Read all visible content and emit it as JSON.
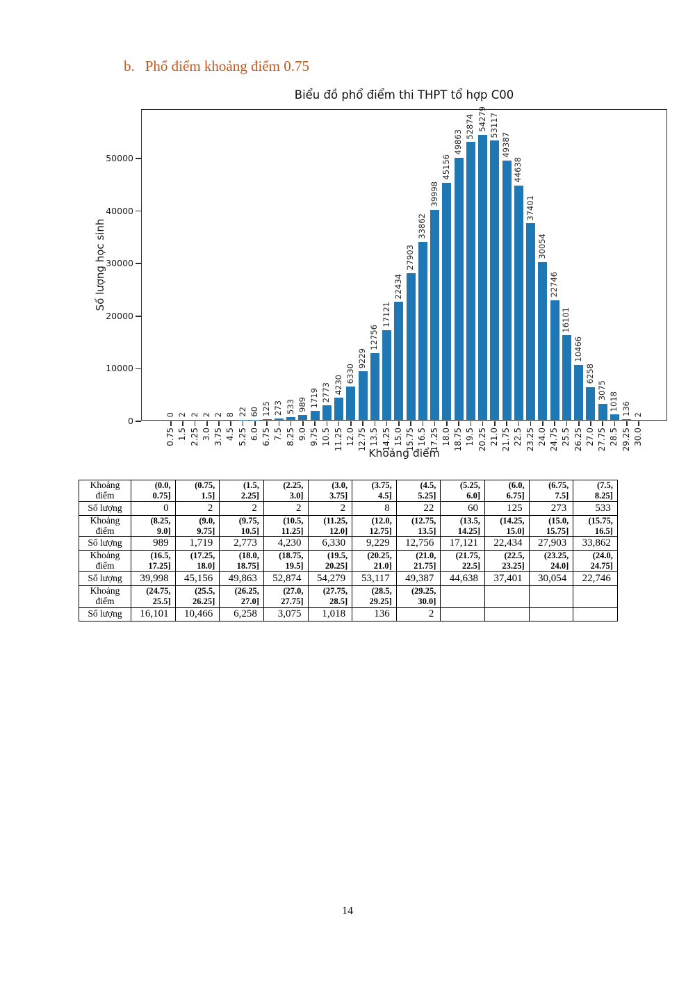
{
  "page": {
    "number": "14"
  },
  "heading": {
    "index": "b.",
    "text": "Phổ điểm khoảng điểm 0.75",
    "color": "#c05a21"
  },
  "chart_data": {
    "type": "bar",
    "title": "Biểu đồ phổ điểm thi THPT tổ hợp C00",
    "xlabel": "Khoảng điểm",
    "ylabel": "Số lượng học sinh",
    "bar_color": "#1f77b4",
    "grid": false,
    "legend": null,
    "ylim": [
      0,
      59259
    ],
    "yticks": [
      0,
      10000,
      20000,
      30000,
      40000,
      50000
    ],
    "categories": [
      "0.75",
      "1.5",
      "2.25",
      "3.0",
      "3.75",
      "4.5",
      "5.25",
      "6.0",
      "6.75",
      "7.5",
      "8.25",
      "9.0",
      "9.75",
      "10.5",
      "11.25",
      "12.0",
      "12.75",
      "13.5",
      "14.25",
      "15.0",
      "15.75",
      "16.5",
      "17.25",
      "18.0",
      "18.75",
      "19.5",
      "20.25",
      "21.0",
      "21.75",
      "22.5",
      "23.25",
      "24.0",
      "24.75",
      "25.5",
      "26.25",
      "27.0",
      "27.75",
      "28.5",
      "29.25",
      "30.0"
    ],
    "values": [
      0,
      2,
      2,
      2,
      2,
      8,
      22,
      60,
      125,
      273,
      533,
      989,
      1719,
      2773,
      4230,
      6330,
      9229,
      12756,
      17121,
      22434,
      27903,
      33862,
      39998,
      45156,
      49863,
      52874,
      54279,
      53117,
      49387,
      44638,
      37401,
      30054,
      22746,
      16101,
      10466,
      6258,
      3075,
      1018,
      136,
      2
    ],
    "bar_value_labels": [
      "0",
      "2",
      "2",
      "2",
      "2",
      "8",
      "22",
      "60",
      "125",
      "273",
      "533",
      "989",
      "1719",
      "2773",
      "4230",
      "6330",
      "9229",
      "12756",
      "17121",
      "22434",
      "27903",
      "33862",
      "39998",
      "45156",
      "49863",
      "52874",
      "54279",
      "53117",
      "49387",
      "44638",
      "37401",
      "30054",
      "22746",
      "16101",
      "10466",
      "6258",
      "3075",
      "1018",
      "136",
      "2"
    ]
  },
  "table": {
    "row_label_interval_lines": [
      "Khoảng",
      "điểm"
    ],
    "row_label_count": "Số lượng",
    "groups": [
      {
        "intervals": [
          [
            "(0.0,",
            "0.75]"
          ],
          [
            "(0.75,",
            "1.5]"
          ],
          [
            "(1.5,",
            "2.25]"
          ],
          [
            "(2.25,",
            "3.0]"
          ],
          [
            "(3.0,",
            "3.75]"
          ],
          [
            "(3.75,",
            "4.5]"
          ],
          [
            "(4.5,",
            "5.25]"
          ],
          [
            "(5.25,",
            "6.0]"
          ],
          [
            "(6.0,",
            "6.75]"
          ],
          [
            "(6.75,",
            "7.5]"
          ],
          [
            "(7.5,",
            "8.25]"
          ]
        ],
        "counts": [
          "0",
          "2",
          "2",
          "2",
          "2",
          "8",
          "22",
          "60",
          "125",
          "273",
          "533"
        ]
      },
      {
        "intervals": [
          [
            "(8.25,",
            "9.0]"
          ],
          [
            "(9.0,",
            "9.75]"
          ],
          [
            "(9.75,",
            "10.5]"
          ],
          [
            "(10.5,",
            "11.25]"
          ],
          [
            "(11.25,",
            "12.0]"
          ],
          [
            "(12.0,",
            "12.75]"
          ],
          [
            "(12.75,",
            "13.5]"
          ],
          [
            "(13.5,",
            "14.25]"
          ],
          [
            "(14.25,",
            "15.0]"
          ],
          [
            "(15.0,",
            "15.75]"
          ],
          [
            "(15.75,",
            "16.5]"
          ]
        ],
        "counts": [
          "989",
          "1,719",
          "2,773",
          "4,230",
          "6,330",
          "9,229",
          "12,756",
          "17,121",
          "22,434",
          "27,903",
          "33,862"
        ]
      },
      {
        "intervals": [
          [
            "(16.5,",
            "17.25]"
          ],
          [
            "(17.25,",
            "18.0]"
          ],
          [
            "(18.0,",
            "18.75]"
          ],
          [
            "(18.75,",
            "19.5]"
          ],
          [
            "(19.5,",
            "20.25]"
          ],
          [
            "(20.25,",
            "21.0]"
          ],
          [
            "(21.0,",
            "21.75]"
          ],
          [
            "(21.75,",
            "22.5]"
          ],
          [
            "(22.5,",
            "23.25]"
          ],
          [
            "(23.25,",
            "24.0]"
          ],
          [
            "(24.0,",
            "24.75]"
          ]
        ],
        "counts": [
          "39,998",
          "45,156",
          "49,863",
          "52,874",
          "54,279",
          "53,117",
          "49,387",
          "44,638",
          "37,401",
          "30,054",
          "22,746"
        ]
      },
      {
        "intervals": [
          [
            "(24.75,",
            "25.5]"
          ],
          [
            "(25.5,",
            "26.25]"
          ],
          [
            "(26.25,",
            "27.0]"
          ],
          [
            "(27.0,",
            "27.75]"
          ],
          [
            "(27.75,",
            "28.5]"
          ],
          [
            "(28.5,",
            "29.25]"
          ],
          [
            "(29.25,",
            "30.0]"
          ],
          null,
          null,
          null,
          null
        ],
        "counts": [
          "16,101",
          "10,466",
          "6,258",
          "3,075",
          "1,018",
          "136",
          "2",
          "",
          "",
          "",
          ""
        ]
      }
    ]
  }
}
